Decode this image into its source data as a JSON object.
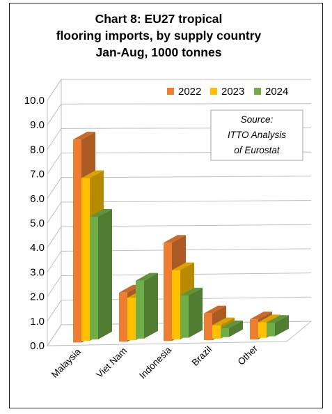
{
  "chart_data": {
    "type": "bar",
    "title": [
      "Chart 8: EU27 tropical",
      "flooring imports, by supply country",
      "Jan-Aug, 1000 tonnes"
    ],
    "categories": [
      "Malaysia",
      "Viet Nam",
      "Indonesia",
      "Brazil",
      "Other"
    ],
    "series": [
      {
        "name": "2022",
        "color": "#ED7D31",
        "values": [
          9.1,
          2.2,
          4.4,
          1.2,
          0.9
        ]
      },
      {
        "name": "2023",
        "color": "#FFC000",
        "values": [
          7.3,
          1.9,
          3.1,
          0.6,
          0.7
        ]
      },
      {
        "name": "2024",
        "color": "#70AD47",
        "values": [
          5.5,
          2.6,
          1.9,
          0.4,
          0.6
        ]
      }
    ],
    "y_ticks": [
      "0.0",
      "1.0",
      "2.0",
      "3.0",
      "4.0",
      "5.0",
      "6.0",
      "7.0",
      "8.0",
      "9.0",
      "10.0"
    ],
    "ylim": [
      0,
      10
    ],
    "grid": true,
    "legend_position": "top-right",
    "annotation": [
      "Source:",
      "ITTO Analysis",
      "of Eurostat"
    ]
  }
}
